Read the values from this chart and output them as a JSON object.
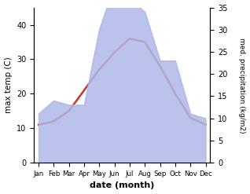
{
  "months": [
    "Jan",
    "Feb",
    "Mar",
    "Apr",
    "May",
    "Jun",
    "Jul",
    "Aug",
    "Sep",
    "Oct",
    "Nov",
    "Dec"
  ],
  "temperature": [
    11,
    12,
    15,
    21,
    27,
    32,
    36,
    35,
    28,
    20,
    13,
    11
  ],
  "precipitation": [
    11,
    14,
    13,
    13,
    30,
    40,
    37,
    34,
    23,
    23,
    11,
    10
  ],
  "temp_color": "#c0392b",
  "precip_fill_color": "#b0b8e8",
  "temp_ylim": [
    0,
    45
  ],
  "precip_ylim": [
    0,
    35
  ],
  "temp_yticks": [
    0,
    10,
    20,
    30,
    40
  ],
  "precip_yticks": [
    0,
    5,
    10,
    15,
    20,
    25,
    30,
    35
  ],
  "xlabel": "date (month)",
  "ylabel_left": "max temp (C)",
  "ylabel_right": "med. precipitation (kg/m2)",
  "bg_color": "#ffffff"
}
